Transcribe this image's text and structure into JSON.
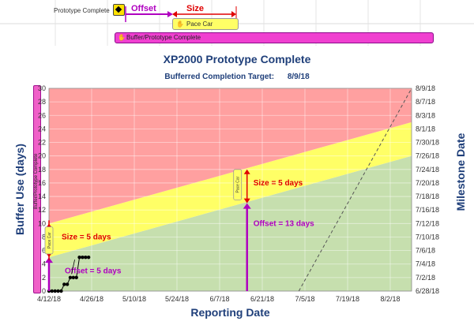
{
  "gantt": {
    "task_label": "Prototype Complete",
    "offset_label": "Offset",
    "size_label": "Size",
    "pace_car_label": "Pace Car",
    "buffer_bar_label": "Buffer/Prototype Complete",
    "colors": {
      "offset": "#b000c0",
      "size": "#e00000",
      "buffer": "#f040d0",
      "pace": "#ffff66"
    }
  },
  "title": "XP2000 Prototype Complete",
  "subtitle": {
    "label": "Bufferred Completion Target:",
    "value": "8/9/18"
  },
  "left_strip_label": "Buffer/Prototype Complete",
  "chart_data": {
    "type": "area",
    "xlabel": "Reporting Date",
    "ylabel": "Buffer Use (days)",
    "y2label": "Milestone Date",
    "x_ticks": [
      "4/12/18",
      "4/26/18",
      "5/10/18",
      "5/24/18",
      "6/7/18",
      "6/21/18",
      "7/5/18",
      "7/19/18",
      "8/2/18"
    ],
    "y_ticks": [
      0,
      2,
      4,
      6,
      8,
      10,
      12,
      14,
      16,
      18,
      20,
      22,
      24,
      26,
      28,
      30
    ],
    "y2_ticks": [
      "6/28/18",
      "7/2/18",
      "7/4/18",
      "7/6/18",
      "7/10/18",
      "7/12/18",
      "7/16/18",
      "7/18/18",
      "7/20/18",
      "7/24/18",
      "7/26/18",
      "7/30/18",
      "8/1/18",
      "8/3/18",
      "8/7/18",
      "8/9/18"
    ],
    "ylim": [
      0,
      30
    ],
    "xlim": [
      "4/12/18",
      "8/9/18"
    ],
    "zones": [
      {
        "name": "green",
        "color": "#c6dfae",
        "lower": [
          0,
          0
        ],
        "upper": [
          5,
          20
        ]
      },
      {
        "name": "yellow",
        "color": "#ffff66",
        "lower": [
          5,
          20
        ],
        "upper": [
          10,
          25
        ]
      },
      {
        "name": "red",
        "color": "#ffa0a0",
        "lower": [
          10,
          25
        ],
        "upper": [
          30,
          30
        ]
      }
    ],
    "buffer_use_points": [
      {
        "x": "4/12/18",
        "y": 0
      },
      {
        "x": "4/13/18",
        "y": 0
      },
      {
        "x": "4/14/18",
        "y": 0
      },
      {
        "x": "4/15/18",
        "y": 0
      },
      {
        "x": "4/16/18",
        "y": 0
      },
      {
        "x": "4/17/18",
        "y": 1
      },
      {
        "x": "4/18/18",
        "y": 1
      },
      {
        "x": "4/19/18",
        "y": 2
      },
      {
        "x": "4/20/18",
        "y": 2
      },
      {
        "x": "4/21/18",
        "y": 2
      },
      {
        "x": "4/22/18",
        "y": 5
      },
      {
        "x": "4/23/18",
        "y": 5
      },
      {
        "x": "4/24/18",
        "y": 5
      },
      {
        "x": "4/25/18",
        "y": 5
      }
    ],
    "dashed_line": {
      "from": {
        "x": "7/3/18",
        "y": 0
      },
      "to": {
        "x": "8/9/18",
        "y": 30
      }
    },
    "annotations": [
      {
        "text": "Size = 5 days",
        "color": "#e00000"
      },
      {
        "text": "Offset = 5 days",
        "color": "#b000c0"
      },
      {
        "text": "Size = 5 days",
        "color": "#e00000"
      },
      {
        "text": "Offset = 13 days",
        "color": "#b000c0"
      }
    ],
    "pace_car_label": "Pace Car"
  }
}
